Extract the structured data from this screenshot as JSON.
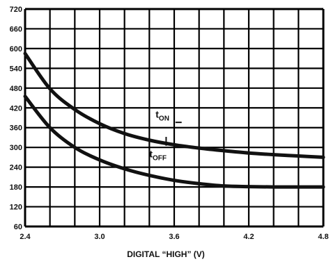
{
  "chart_data": {
    "type": "line",
    "title": "",
    "xlabel": "DIGITAL “HIGH” (V)",
    "ylabel": "",
    "xlim": [
      2.4,
      4.8
    ],
    "ylim": [
      60,
      720
    ],
    "x_grid_step": 0.2,
    "y_grid_step": 60,
    "x_ticks": [
      2.4,
      3.0,
      3.6,
      4.2,
      4.8
    ],
    "x_tick_labels": [
      "2.4",
      "3.0",
      "3.6",
      "4.2",
      "4.8"
    ],
    "y_ticks": [
      60,
      120,
      180,
      240,
      300,
      360,
      420,
      480,
      540,
      600,
      660,
      720
    ],
    "y_tick_labels": [
      "60",
      "120",
      "180",
      "240",
      "300",
      "360",
      "420",
      "480",
      "540",
      "600",
      "660",
      "720"
    ],
    "grid": true,
    "series": [
      {
        "name": "tON",
        "label_main": "t",
        "label_sub": "ON",
        "x": [
          2.4,
          2.6,
          2.8,
          3.0,
          3.2,
          3.4,
          3.6,
          3.8,
          4.0,
          4.2,
          4.4,
          4.6,
          4.8
        ],
        "values": [
          585,
          478,
          415,
          372,
          342,
          322,
          308,
          298,
          290,
          283,
          278,
          274,
          270
        ]
      },
      {
        "name": "tOFF",
        "label_main": "t",
        "label_sub": "OFF",
        "x": [
          2.4,
          2.6,
          2.8,
          3.0,
          3.2,
          3.4,
          3.6,
          3.8,
          4.0,
          4.2,
          4.4,
          4.6,
          4.8
        ],
        "values": [
          455,
          360,
          300,
          262,
          235,
          215,
          200,
          190,
          183,
          181,
          180,
          180,
          180
        ]
      }
    ]
  }
}
